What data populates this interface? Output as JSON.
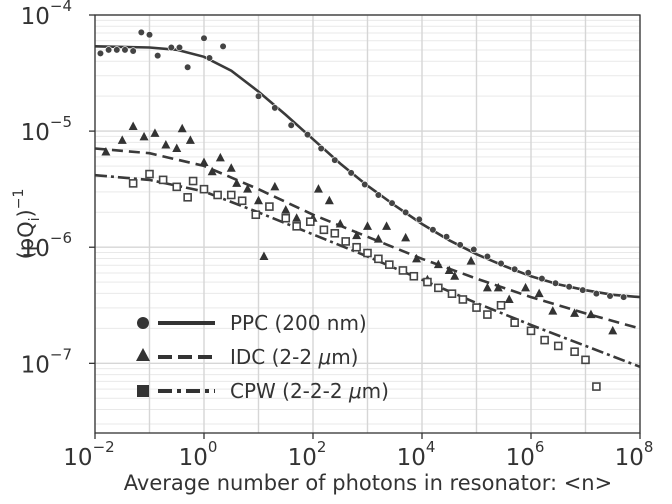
{
  "chart_data": {
    "type": "scatter",
    "xscale": "log",
    "yscale": "log",
    "xlim_exp": [
      -2,
      8
    ],
    "ylim_exp": [
      -7.6,
      -4
    ],
    "xlabel": "Average number of photons in resonator: <n>",
    "ylabel": {
      "base": "(pQ",
      "sub": "i",
      "close": ")",
      "sup": "−1"
    },
    "grid": true,
    "legend_position": "lower-left",
    "x_ticks": [
      {
        "base": "10",
        "exp": "−2"
      },
      {
        "base": "10",
        "exp": "0"
      },
      {
        "base": "10",
        "exp": "2"
      },
      {
        "base": "10",
        "exp": "4"
      },
      {
        "base": "10",
        "exp": "6"
      },
      {
        "base": "10",
        "exp": "8"
      }
    ],
    "y_ticks": [
      {
        "base": "10",
        "exp": "−7"
      },
      {
        "base": "10",
        "exp": "−6"
      },
      {
        "base": "10",
        "exp": "−5"
      },
      {
        "base": "10",
        "exp": "−4"
      }
    ],
    "series": [
      {
        "name": "PPC (200 nm)",
        "label": "PPC (200 nm)",
        "marker": "circle",
        "line_style": "solid",
        "color": "#3a3a3a",
        "points_log10": [
          [
            -1.9,
            -4.33
          ],
          [
            -1.75,
            -4.3
          ],
          [
            -1.6,
            -4.3
          ],
          [
            -1.45,
            -4.3
          ],
          [
            -1.3,
            -4.31
          ],
          [
            -1.15,
            -4.15
          ],
          [
            -1.0,
            -4.17
          ],
          [
            -0.85,
            -4.35
          ],
          [
            -0.6,
            -4.28
          ],
          [
            -0.45,
            -4.28
          ],
          [
            -0.3,
            -4.45
          ],
          [
            0.0,
            -4.2
          ],
          [
            0.1,
            -4.37
          ],
          [
            0.35,
            -4.27
          ],
          [
            1.0,
            -4.7
          ],
          [
            1.3,
            -4.8
          ],
          [
            1.6,
            -4.95
          ],
          [
            1.9,
            -5.03
          ],
          [
            2.15,
            -5.15
          ],
          [
            2.4,
            -5.25
          ],
          [
            2.7,
            -5.36
          ],
          [
            2.95,
            -5.46
          ],
          [
            3.2,
            -5.55
          ],
          [
            3.45,
            -5.62
          ],
          [
            3.7,
            -5.7
          ],
          [
            3.95,
            -5.76
          ],
          [
            4.2,
            -5.85
          ],
          [
            4.45,
            -5.91
          ],
          [
            4.7,
            -5.98
          ],
          [
            4.95,
            -6.02
          ],
          [
            5.2,
            -6.08
          ],
          [
            5.45,
            -6.14
          ],
          [
            5.7,
            -6.19
          ],
          [
            5.95,
            -6.22
          ],
          [
            6.2,
            -6.27
          ],
          [
            6.45,
            -6.31
          ],
          [
            6.7,
            -6.34
          ],
          [
            6.95,
            -6.37
          ],
          [
            7.2,
            -6.4
          ],
          [
            7.45,
            -6.42
          ],
          [
            7.7,
            -6.43
          ]
        ],
        "fit_log10": [
          [
            -2.0,
            -4.27
          ],
          [
            -1.0,
            -4.28
          ],
          [
            -0.5,
            -4.3
          ],
          [
            0.0,
            -4.36
          ],
          [
            0.5,
            -4.48
          ],
          [
            1.0,
            -4.66
          ],
          [
            1.5,
            -4.86
          ],
          [
            2.0,
            -5.07
          ],
          [
            2.5,
            -5.28
          ],
          [
            3.0,
            -5.47
          ],
          [
            3.5,
            -5.64
          ],
          [
            4.0,
            -5.8
          ],
          [
            4.5,
            -5.94
          ],
          [
            5.0,
            -6.06
          ],
          [
            5.5,
            -6.16
          ],
          [
            6.0,
            -6.25
          ],
          [
            6.5,
            -6.32
          ],
          [
            7.0,
            -6.37
          ],
          [
            7.5,
            -6.41
          ],
          [
            8.0,
            -6.43
          ]
        ]
      },
      {
        "name": "IDC (2-2 μm)",
        "label": "IDC (2-2 ",
        "label_math": "μ",
        "label_end": "m)",
        "marker": "triangle",
        "line_style": "dashed",
        "color": "#3a3a3a",
        "points_log10": [
          [
            -1.8,
            -5.18
          ],
          [
            -1.5,
            -5.08
          ],
          [
            -1.3,
            -4.96
          ],
          [
            -1.1,
            -5.05
          ],
          [
            -0.9,
            -5.02
          ],
          [
            -0.7,
            -5.12
          ],
          [
            -0.5,
            -5.15
          ],
          [
            -0.4,
            -4.98
          ],
          [
            -0.25,
            -5.08
          ],
          [
            0.0,
            -5.27
          ],
          [
            0.15,
            -5.35
          ],
          [
            0.3,
            -5.23
          ],
          [
            0.5,
            -5.32
          ],
          [
            0.6,
            -5.45
          ],
          [
            0.8,
            -5.5
          ],
          [
            1.0,
            -5.6
          ],
          [
            1.1,
            -6.08
          ],
          [
            1.3,
            -5.48
          ],
          [
            1.5,
            -5.68
          ],
          [
            1.7,
            -5.75
          ],
          [
            2.0,
            -5.75
          ],
          [
            2.1,
            -5.5
          ],
          [
            2.3,
            -5.6
          ],
          [
            2.5,
            -5.8
          ],
          [
            2.8,
            -5.9
          ],
          [
            3.0,
            -5.82
          ],
          [
            3.2,
            -5.93
          ],
          [
            3.35,
            -5.82
          ],
          [
            3.7,
            -5.92
          ],
          [
            3.9,
            -6.1
          ],
          [
            4.1,
            -6.28
          ],
          [
            4.3,
            -6.15
          ],
          [
            4.5,
            -6.2
          ],
          [
            4.6,
            -6.25
          ],
          [
            4.9,
            -6.12
          ],
          [
            5.2,
            -6.35
          ],
          [
            5.4,
            -6.35
          ],
          [
            5.6,
            -6.45
          ],
          [
            5.9,
            -6.35
          ],
          [
            6.15,
            -6.4
          ],
          [
            6.4,
            -6.55
          ],
          [
            6.8,
            -6.57
          ],
          [
            7.1,
            -6.58
          ],
          [
            7.5,
            -6.72
          ]
        ],
        "fit_log10": [
          [
            -2.0,
            -5.15
          ],
          [
            -1.0,
            -5.19
          ],
          [
            0.0,
            -5.3
          ],
          [
            1.0,
            -5.5
          ],
          [
            2.0,
            -5.72
          ],
          [
            3.0,
            -5.91
          ],
          [
            4.0,
            -6.1
          ],
          [
            5.0,
            -6.27
          ],
          [
            6.0,
            -6.43
          ],
          [
            7.0,
            -6.57
          ],
          [
            8.0,
            -6.7
          ]
        ]
      },
      {
        "name": "CPW (2-2-2 μm)",
        "label": "CPW (2-2-2 ",
        "label_math": "μ",
        "label_end": "m)",
        "marker": "square",
        "line_style": "dashdot",
        "color": "#3a3a3a",
        "points_log10": [
          [
            -1.3,
            -5.45
          ],
          [
            -1.0,
            -5.37
          ],
          [
            -0.75,
            -5.42
          ],
          [
            -0.5,
            -5.48
          ],
          [
            -0.3,
            -5.57
          ],
          [
            -0.2,
            -5.43
          ],
          [
            0.0,
            -5.5
          ],
          [
            0.25,
            -5.55
          ],
          [
            0.5,
            -5.55
          ],
          [
            0.7,
            -5.6
          ],
          [
            0.95,
            -5.72
          ],
          [
            1.2,
            -5.65
          ],
          [
            1.5,
            -5.75
          ],
          [
            1.7,
            -5.82
          ],
          [
            1.95,
            -5.78
          ],
          [
            2.2,
            -5.85
          ],
          [
            2.4,
            -5.88
          ],
          [
            2.6,
            -5.95
          ],
          [
            2.8,
            -6.0
          ],
          [
            3.0,
            -6.05
          ],
          [
            3.2,
            -6.1
          ],
          [
            3.4,
            -6.15
          ],
          [
            3.65,
            -6.2
          ],
          [
            3.85,
            -6.25
          ],
          [
            4.1,
            -6.3
          ],
          [
            4.3,
            -6.35
          ],
          [
            4.55,
            -6.4
          ],
          [
            4.75,
            -6.45
          ],
          [
            5.0,
            -6.52
          ],
          [
            5.2,
            -6.58
          ],
          [
            5.45,
            -6.5
          ],
          [
            5.7,
            -6.65
          ],
          [
            6.0,
            -6.72
          ],
          [
            6.25,
            -6.8
          ],
          [
            6.5,
            -6.85
          ],
          [
            6.8,
            -6.9
          ],
          [
            7.0,
            -6.97
          ],
          [
            7.2,
            -7.2
          ]
        ],
        "fit_log10": [
          [
            -2.0,
            -5.38
          ],
          [
            -1.0,
            -5.42
          ],
          [
            0.0,
            -5.52
          ],
          [
            1.0,
            -5.7
          ],
          [
            2.0,
            -5.89
          ],
          [
            3.0,
            -6.08
          ],
          [
            4.0,
            -6.28
          ],
          [
            5.0,
            -6.48
          ],
          [
            6.0,
            -6.67
          ],
          [
            7.0,
            -6.85
          ],
          [
            8.0,
            -7.03
          ]
        ]
      }
    ]
  }
}
